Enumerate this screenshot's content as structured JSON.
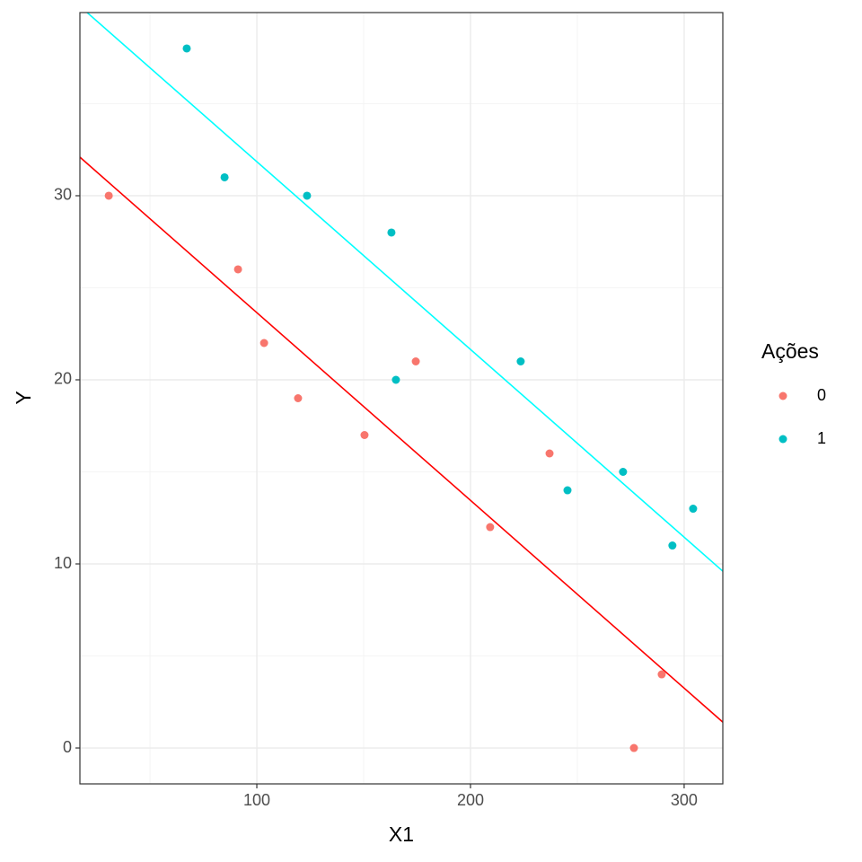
{
  "chart_data": {
    "type": "scatter",
    "x_label": "X1",
    "y_label": "Y",
    "xlim": [
      17.2,
      318.1
    ],
    "ylim": [
      -1.95,
      39.95
    ],
    "xticks": [
      100,
      200,
      300
    ],
    "yticks": [
      0,
      10,
      20,
      30
    ],
    "x_minor_grid": [
      50,
      150,
      250
    ],
    "y_minor_grid": [
      5,
      15,
      25,
      35
    ],
    "grid": true,
    "legend_title": "Ações",
    "legend_position": "right",
    "series": [
      {
        "name": "0",
        "color": "#F8766D",
        "line_color": "#FF0000",
        "x": [
          30.7,
          91.2,
          103.4,
          119.3,
          150.4,
          174.4,
          209.2,
          237.0,
          276.5,
          289.5
        ],
        "values": [
          30,
          26,
          22,
          19,
          17,
          21,
          12,
          16,
          0,
          4
        ],
        "fit": {
          "intercept": 33.85,
          "slope": -0.102
        }
      },
      {
        "name": "1",
        "color": "#00BFC4",
        "line_color": "#00FFFF",
        "x": [
          67.2,
          84.9,
          123.5,
          163.0,
          165.1,
          223.5,
          245.4,
          271.4,
          294.5,
          304.2
        ],
        "values": [
          38,
          31,
          30,
          28,
          20,
          21,
          14,
          15,
          11,
          13
        ],
        "fit": {
          "intercept": 42.05,
          "slope": -0.102
        }
      }
    ]
  }
}
